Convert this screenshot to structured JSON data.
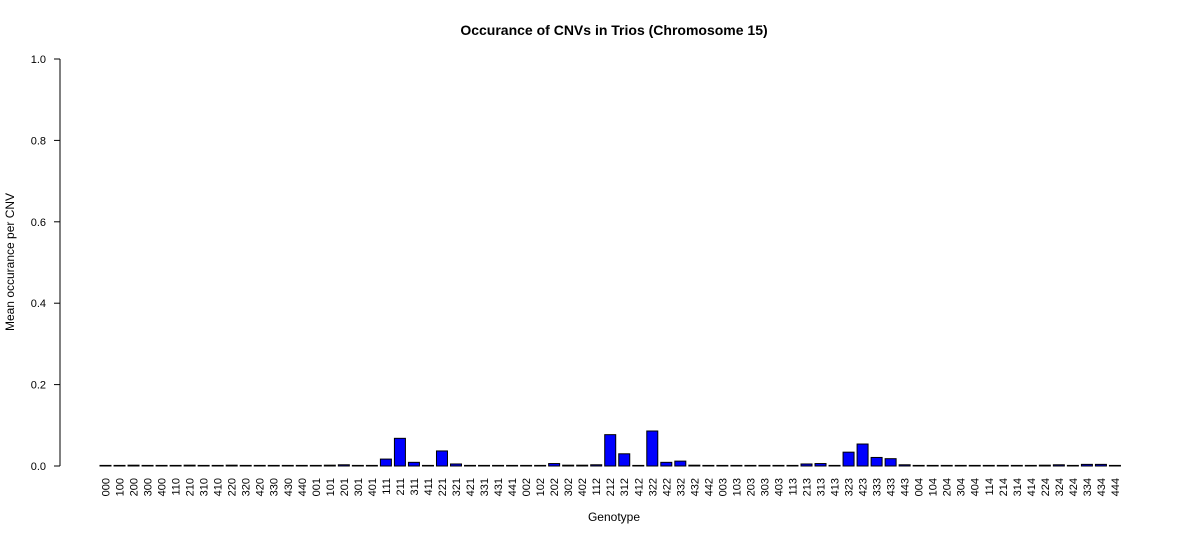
{
  "chart_data": {
    "type": "bar",
    "title": "Occurance of CNVs in Trios (Chromosome 15)",
    "xlabel": "Genotype",
    "ylabel": "Mean occurance per CNV",
    "ylim": [
      0,
      1.0
    ],
    "yticks": [
      "0.0",
      "0.2",
      "0.4",
      "0.6",
      "0.8",
      "1.0"
    ],
    "grid": false,
    "bar_color": "#0000ff",
    "categories": [
      "000",
      "100",
      "200",
      "300",
      "400",
      "110",
      "210",
      "310",
      "410",
      "220",
      "320",
      "420",
      "330",
      "430",
      "440",
      "001",
      "101",
      "201",
      "301",
      "401",
      "111",
      "211",
      "311",
      "411",
      "221",
      "321",
      "421",
      "331",
      "431",
      "441",
      "002",
      "102",
      "202",
      "302",
      "402",
      "112",
      "212",
      "312",
      "412",
      "322",
      "422",
      "332",
      "432",
      "442",
      "003",
      "103",
      "203",
      "303",
      "403",
      "113",
      "213",
      "313",
      "413",
      "323",
      "423",
      "333",
      "433",
      "443",
      "004",
      "104",
      "204",
      "304",
      "404",
      "114",
      "214",
      "314",
      "414",
      "224",
      "324",
      "424",
      "334",
      "434",
      "444"
    ],
    "values": [
      0.001,
      0.001,
      0.002,
      0.001,
      0.001,
      0.001,
      0.002,
      0.001,
      0.001,
      0.002,
      0.001,
      0.001,
      0.001,
      0.001,
      0.001,
      0.001,
      0.002,
      0.003,
      0.001,
      0.001,
      0.017,
      0.068,
      0.009,
      0.001,
      0.037,
      0.005,
      0.001,
      0.001,
      0.001,
      0.001,
      0.001,
      0.001,
      0.006,
      0.002,
      0.002,
      0.003,
      0.077,
      0.03,
      0.001,
      0.086,
      0.009,
      0.012,
      0.002,
      0.001,
      0.001,
      0.001,
      0.001,
      0.001,
      0.001,
      0.001,
      0.005,
      0.006,
      0.001,
      0.034,
      0.054,
      0.021,
      0.018,
      0.003,
      0.001,
      0.001,
      0.001,
      0.001,
      0.001,
      0.001,
      0.001,
      0.001,
      0.001,
      0.002,
      0.003,
      0.001,
      0.004,
      0.004,
      0.001
    ]
  }
}
